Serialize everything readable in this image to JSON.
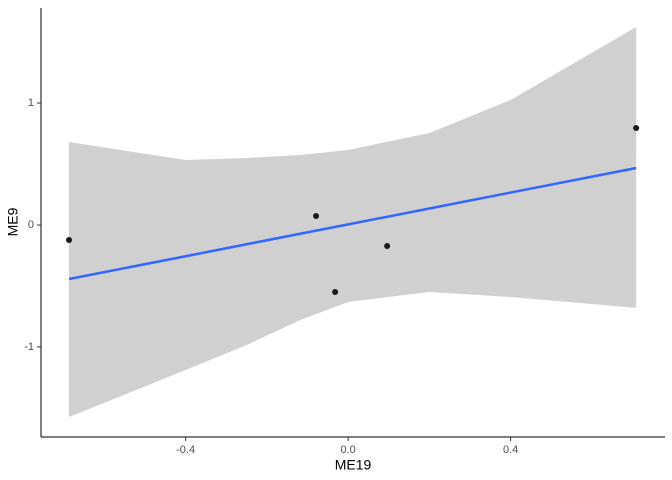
{
  "chart_data": {
    "type": "scatter",
    "x_label": "ME19",
    "y_label": "ME9",
    "x": [
      -0.687,
      -0.079,
      -0.032,
      0.096,
      0.709
    ],
    "values": [
      -0.123,
      0.074,
      -0.549,
      -0.172,
      0.795
    ],
    "color": "#1a1a1a",
    "smooth": {
      "color": "#3366ff",
      "band_color": "#d0d0d0",
      "x": [
        -0.687,
        -0.4,
        -0.25,
        -0.118,
        0,
        0.2,
        0.4,
        0.709
      ],
      "values": [
        -0.443,
        -0.256,
        -0.158,
        -0.072,
        0.005,
        0.135,
        0.266,
        0.467
      ],
      "ymax": [
        0.68,
        0.533,
        0.549,
        0.574,
        0.615,
        0.754,
        1.025,
        1.623
      ],
      "ymin": [
        -1.574,
        -1.189,
        -0.984,
        -0.779,
        -0.631,
        -0.549,
        -0.59,
        -0.68
      ]
    },
    "xlim": [
      -0.756,
      0.78
    ],
    "ylim": [
      -1.738,
      1.779
    ],
    "xticks": [
      -0.4,
      {
        "value": 0,
        "label": "0.0"
      },
      0.4
    ],
    "yticks": [
      -1,
      0,
      1
    ]
  }
}
